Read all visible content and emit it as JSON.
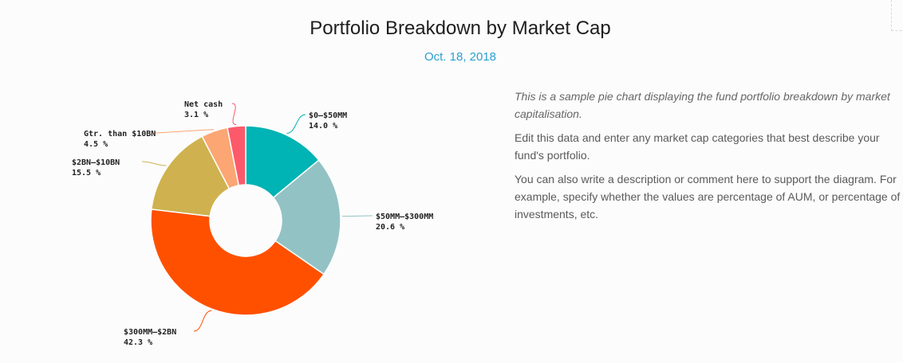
{
  "header": {
    "title": "Portfolio Breakdown by Market Cap",
    "date": "Oct. 18, 2018"
  },
  "description": {
    "paragraph1": "This is a sample pie chart displaying the fund portfolio breakdown by market capitalisation.",
    "paragraph2": "Edit this data and enter any market cap categories that best describe your fund's portfolio.",
    "paragraph3": "You can also write a description or comment here to support the diagram. For example, specify whether the values are percentage of AUM, or percentage of investments, etc."
  },
  "chart_data": {
    "type": "pie",
    "style": "donut",
    "title": "Portfolio Breakdown by Market Cap",
    "subtitle": "Oct. 18, 2018",
    "unit": "%",
    "slices": [
      {
        "label": "$0–$50MM",
        "value": 14.0,
        "value_label": "14.0 %",
        "color": "#00b3b4"
      },
      {
        "label": "$50MM–$300MM",
        "value": 20.6,
        "value_label": "20.6 %",
        "color": "#93c2c4"
      },
      {
        "label": "$300MM–$2BN",
        "value": 42.3,
        "value_label": "42.3 %",
        "color": "#ff5000"
      },
      {
        "label": "$2BN–$10BN",
        "value": 15.5,
        "value_label": "15.5 %",
        "color": "#cfb24f"
      },
      {
        "label": "Gtr. than $10BN",
        "value": 4.5,
        "value_label": "4.5 %",
        "color": "#fba673"
      },
      {
        "label": "Net cash",
        "value": 3.1,
        "value_label": "3.1 %",
        "color": "#fc5a6a"
      }
    ]
  }
}
